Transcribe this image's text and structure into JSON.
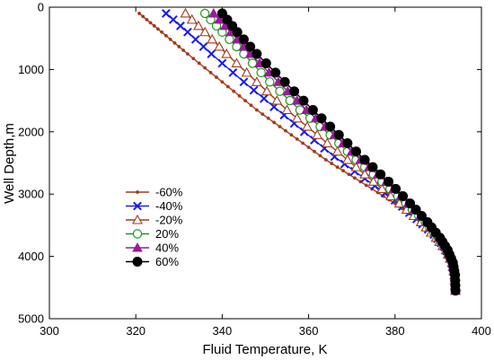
{
  "chart_data": {
    "type": "line",
    "xlabel": "Fluid Temperature, K",
    "ylabel": "Well Depth,m",
    "xlim": [
      300,
      400
    ],
    "ylim": [
      0,
      5000
    ],
    "y_inverted": true,
    "x_axis_position": "top-and-bottom",
    "xticks": [
      300,
      320,
      340,
      360,
      380,
      400
    ],
    "yticks": [
      0,
      1000,
      2000,
      3000,
      4000,
      5000
    ],
    "grid": false,
    "legend": "lower-left-inside",
    "series": [
      {
        "name": "-60%",
        "color": "#a33a1a",
        "marker": "small-diamond-filled",
        "marker_every": 1,
        "points": [
          [
            320.8,
            100
          ],
          [
            326,
            400
          ],
          [
            332,
            750
          ],
          [
            340,
            1200
          ],
          [
            348,
            1650
          ],
          [
            356,
            2050
          ],
          [
            364,
            2450
          ],
          [
            372,
            2800
          ],
          [
            380,
            3150
          ],
          [
            385,
            3400
          ],
          [
            389,
            3650
          ],
          [
            391.5,
            3850
          ],
          [
            393,
            4050
          ],
          [
            393.6,
            4250
          ],
          [
            394,
            4550
          ]
        ]
      },
      {
        "name": "-40%",
        "color": "#1a1aee",
        "marker": "x",
        "marker_every": 2,
        "points": [
          [
            327,
            100
          ],
          [
            332,
            400
          ],
          [
            337.5,
            750
          ],
          [
            345,
            1200
          ],
          [
            352,
            1600
          ],
          [
            359,
            2000
          ],
          [
            366,
            2400
          ],
          [
            373,
            2750
          ],
          [
            380,
            3100
          ],
          [
            385,
            3400
          ],
          [
            389,
            3650
          ],
          [
            391.5,
            3850
          ],
          [
            393,
            4050
          ],
          [
            393.6,
            4250
          ],
          [
            394,
            4550
          ]
        ]
      },
      {
        "name": "-20%",
        "color": "#a33a1a",
        "marker": "triangle-open",
        "marker_every": 2,
        "points": [
          [
            331.5,
            100
          ],
          [
            336,
            400
          ],
          [
            341,
            750
          ],
          [
            348,
            1200
          ],
          [
            355,
            1650
          ],
          [
            362,
            2050
          ],
          [
            369,
            2450
          ],
          [
            375,
            2800
          ],
          [
            381,
            3150
          ],
          [
            386,
            3450
          ],
          [
            389.5,
            3700
          ],
          [
            391.8,
            3900
          ],
          [
            393.2,
            4100
          ],
          [
            393.8,
            4300
          ],
          [
            394,
            4550
          ]
        ]
      },
      {
        "name": "20%",
        "color": "#1a9a1a",
        "marker": "circle-open",
        "marker_every": 2,
        "points": [
          [
            336,
            100
          ],
          [
            340,
            400
          ],
          [
            345,
            750
          ],
          [
            351,
            1200
          ],
          [
            358,
            1650
          ],
          [
            365,
            2050
          ],
          [
            371,
            2450
          ],
          [
            377,
            2800
          ],
          [
            382.5,
            3150
          ],
          [
            387,
            3450
          ],
          [
            390,
            3700
          ],
          [
            392,
            3900
          ],
          [
            393.3,
            4100
          ],
          [
            393.8,
            4300
          ],
          [
            394,
            4550
          ]
        ]
      },
      {
        "name": "40%",
        "color": "#9a1a9a",
        "marker": "triangle-filled",
        "marker_every": 2,
        "points": [
          [
            338,
            100
          ],
          [
            342,
            400
          ],
          [
            346.5,
            750
          ],
          [
            353,
            1200
          ],
          [
            359.5,
            1650
          ],
          [
            366,
            2050
          ],
          [
            372,
            2450
          ],
          [
            378,
            2800
          ],
          [
            383,
            3150
          ],
          [
            387.3,
            3450
          ],
          [
            390.2,
            3700
          ],
          [
            392.1,
            3900
          ],
          [
            393.3,
            4100
          ],
          [
            393.8,
            4300
          ],
          [
            394,
            4550
          ]
        ]
      },
      {
        "name": "60%",
        "color": "#000000",
        "marker": "circle-filled",
        "marker_every": 2,
        "points": [
          [
            340,
            100
          ],
          [
            343.5,
            400
          ],
          [
            348,
            750
          ],
          [
            354.5,
            1200
          ],
          [
            361,
            1650
          ],
          [
            367,
            2050
          ],
          [
            373,
            2450
          ],
          [
            378.5,
            2800
          ],
          [
            383.5,
            3150
          ],
          [
            387.5,
            3450
          ],
          [
            390.4,
            3700
          ],
          [
            392.2,
            3900
          ],
          [
            393.4,
            4100
          ],
          [
            393.9,
            4300
          ],
          [
            394,
            4550
          ]
        ]
      }
    ]
  }
}
